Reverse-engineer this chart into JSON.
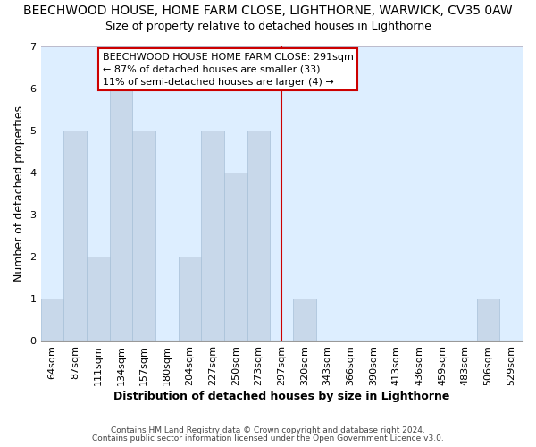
{
  "title": "BEECHWOOD HOUSE, HOME FARM CLOSE, LIGHTHORNE, WARWICK, CV35 0AW",
  "subtitle": "Size of property relative to detached houses in Lighthorne",
  "xlabel": "Distribution of detached houses by size in Lighthorne",
  "ylabel": "Number of detached properties",
  "footnote1": "Contains HM Land Registry data © Crown copyright and database right 2024.",
  "footnote2": "Contains public sector information licensed under the Open Government Licence v3.0.",
  "bar_labels": [
    "64sqm",
    "87sqm",
    "111sqm",
    "134sqm",
    "157sqm",
    "180sqm",
    "204sqm",
    "227sqm",
    "250sqm",
    "273sqm",
    "297sqm",
    "320sqm",
    "343sqm",
    "366sqm",
    "390sqm",
    "413sqm",
    "436sqm",
    "459sqm",
    "483sqm",
    "506sqm",
    "529sqm"
  ],
  "bar_values": [
    1,
    5,
    2,
    6,
    5,
    0,
    2,
    5,
    4,
    5,
    0,
    1,
    0,
    0,
    0,
    0,
    0,
    0,
    0,
    1,
    0
  ],
  "bar_color": "#c8d8ea",
  "bar_edge_color": "#a8c0d8",
  "vline_x_index": 10,
  "vline_color": "#cc0000",
  "annotation_text": "BEECHWOOD HOUSE HOME FARM CLOSE: 291sqm\n← 87% of detached houses are smaller (33)\n11% of semi-detached houses are larger (4) →",
  "annotation_box_color": "#ffffff",
  "annotation_box_edge_color": "#cc0000",
  "ylim": [
    0,
    7
  ],
  "yticks": [
    0,
    1,
    2,
    3,
    4,
    5,
    6,
    7
  ],
  "plot_bg_color": "#ddeeff",
  "background_color": "#ffffff",
  "grid_color": "#bbbbcc",
  "title_fontsize": 10,
  "subtitle_fontsize": 9,
  "axis_label_fontsize": 9,
  "tick_fontsize": 8,
  "annotation_fontsize": 8
}
